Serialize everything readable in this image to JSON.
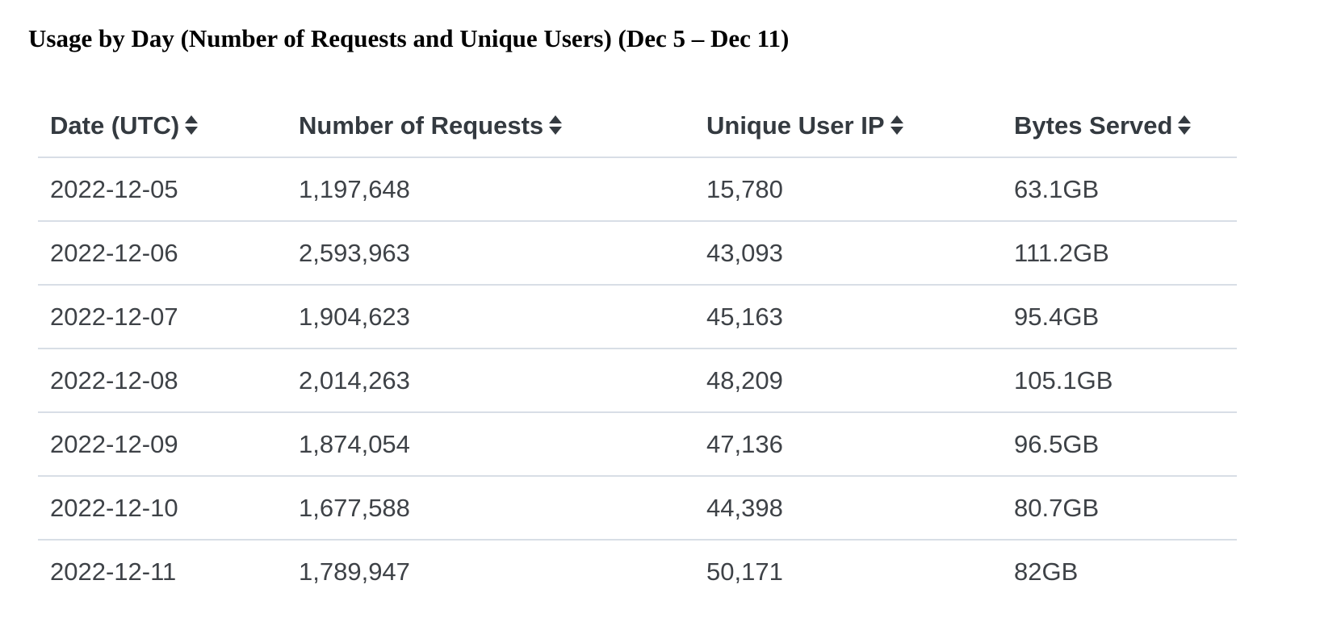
{
  "title": "Usage by Day (Number of Requests and Unique Users) (Dec 5 – Dec 11)",
  "table": {
    "columns": [
      {
        "label": "Date (UTC)",
        "sort_icon": "sort-updown-icon"
      },
      {
        "label": "Number of Requests",
        "sort_icon": "sort-updown-icon"
      },
      {
        "label": "Unique User IP",
        "sort_icon": "sort-updown-icon"
      },
      {
        "label": "Bytes Served",
        "sort_icon": "sort-updown-icon"
      }
    ],
    "rows": [
      [
        "2022-12-05",
        "1,197,648",
        "15,780",
        "63.1GB"
      ],
      [
        "2022-12-06",
        "2,593,963",
        "43,093",
        "111.2GB"
      ],
      [
        "2022-12-07",
        "1,904,623",
        "45,163",
        "95.4GB"
      ],
      [
        "2022-12-08",
        "2,014,263",
        "48,209",
        "105.1GB"
      ],
      [
        "2022-12-09",
        "1,874,054",
        "47,136",
        "96.5GB"
      ],
      [
        "2022-12-10",
        "1,677,588",
        "44,398",
        "80.7GB"
      ],
      [
        "2022-12-11",
        "1,789,947",
        "50,171",
        "82GB"
      ]
    ]
  },
  "colors": {
    "header_text": "#343a40",
    "cell_text": "#3e4247",
    "row_divider": "#d8dee6"
  }
}
